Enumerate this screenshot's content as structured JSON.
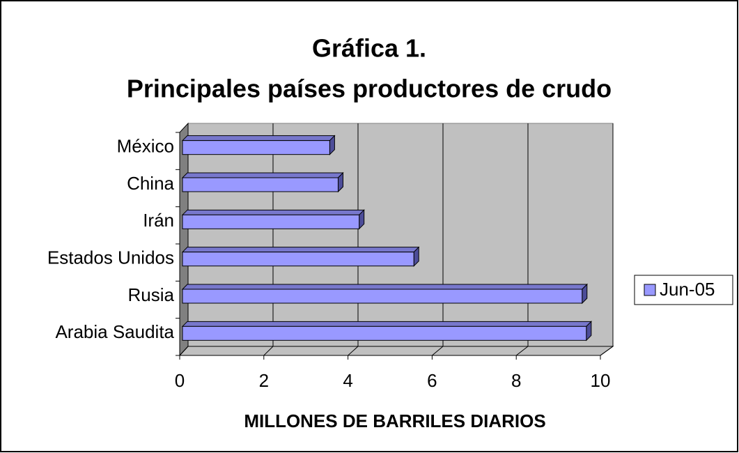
{
  "chart_data": {
    "type": "bar",
    "orientation": "horizontal",
    "title": "Gráfica 1.",
    "subtitle": "Principales países productores de crudo",
    "xlabel": "MILLONES DE BARRILES DIARIOS",
    "categories": [
      "Arabia Saudita",
      "Rusia",
      "Estados Unidos",
      "Irán",
      "China",
      "México"
    ],
    "series": [
      {
        "name": "Jun-05",
        "color": "#9999ff",
        "values": [
          9.6,
          9.5,
          5.5,
          4.2,
          3.7,
          3.5
        ]
      }
    ],
    "xlim": [
      0,
      10
    ],
    "xticks": [
      0,
      2,
      4,
      6,
      8,
      10
    ],
    "grid": true,
    "legend": "right"
  }
}
